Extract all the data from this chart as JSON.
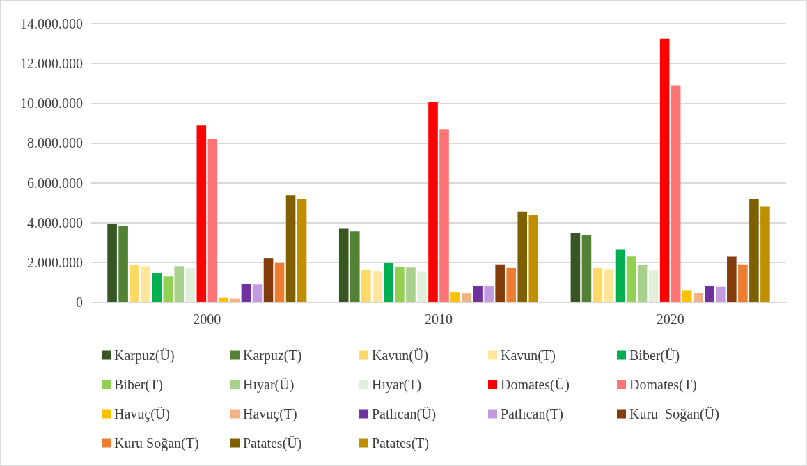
{
  "chart_data": {
    "type": "bar",
    "categories": [
      "2000",
      "2010",
      "2020"
    ],
    "ylim": [
      0,
      14000000
    ],
    "yticks": [
      {
        "value": 0,
        "label": "0"
      },
      {
        "value": 2000000,
        "label": "2.000.000"
      },
      {
        "value": 4000000,
        "label": "4.000.000"
      },
      {
        "value": 6000000,
        "label": "6.000.000"
      },
      {
        "value": 8000000,
        "label": "8.000.000"
      },
      {
        "value": 10000000,
        "label": "10.000.000"
      },
      {
        "value": 12000000,
        "label": "12.000.000"
      },
      {
        "value": 14000000,
        "label": "14.000.000"
      }
    ],
    "grid": "y",
    "legend": "bottom",
    "series": [
      {
        "name": "Karpuz(Ü)",
        "color": "#375623",
        "values": [
          3950000,
          3690000,
          3480000
        ]
      },
      {
        "name": "Karpuz(T)",
        "color": "#548235",
        "values": [
          3830000,
          3560000,
          3370000
        ]
      },
      {
        "name": "Kavun(Ü)",
        "color": "#ffd966",
        "values": [
          1860000,
          1610000,
          1710000
        ]
      },
      {
        "name": "Kavun(T)",
        "color": "#ffe699",
        "values": [
          1810000,
          1570000,
          1660000
        ]
      },
      {
        "name": "Biber(Ü)",
        "color": "#00b050",
        "values": [
          1470000,
          1990000,
          2640000
        ]
      },
      {
        "name": "Biber(T)",
        "color": "#92d050",
        "values": [
          1320000,
          1780000,
          2300000
        ]
      },
      {
        "name": "Hıyar(Ü)",
        "color": "#a9d18e",
        "values": [
          1810000,
          1740000,
          1880000
        ]
      },
      {
        "name": "Hıyar(T)",
        "color": "#e2efda",
        "values": [
          1720000,
          1560000,
          1630000
        ]
      },
      {
        "name": "Domates(Ü)",
        "color": "#ff0000",
        "values": [
          8880000,
          10070000,
          13240000
        ]
      },
      {
        "name": "Domates(T)",
        "color": "#ff7575",
        "values": [
          8190000,
          8710000,
          10900000
        ]
      },
      {
        "name": "Havuç(Ü)",
        "color": "#ffc000",
        "values": [
          220000,
          520000,
          580000
        ]
      },
      {
        "name": "Havuç(T)",
        "color": "#f4b183",
        "values": [
          190000,
          450000,
          460000
        ]
      },
      {
        "name": "Patlıcan(Ü)",
        "color": "#7030a0",
        "values": [
          920000,
          840000,
          830000
        ]
      },
      {
        "name": "Patlıcan(T)",
        "color": "#c39be0",
        "values": [
          900000,
          810000,
          780000
        ]
      },
      {
        "name": "Kuru  Soğan(Ü)",
        "color": "#843c0c",
        "values": [
          2200000,
          1900000,
          2290000
        ]
      },
      {
        "name": "Kuru Soğan(T)",
        "color": "#ed7d31",
        "values": [
          1990000,
          1720000,
          1900000
        ]
      },
      {
        "name": "Patates(Ü)",
        "color": "#7f6000",
        "values": [
          5380000,
          4560000,
          5210000
        ]
      },
      {
        "name": "Patates(T)",
        "color": "#bf8f00",
        "values": [
          5200000,
          4380000,
          4810000
        ]
      }
    ]
  }
}
